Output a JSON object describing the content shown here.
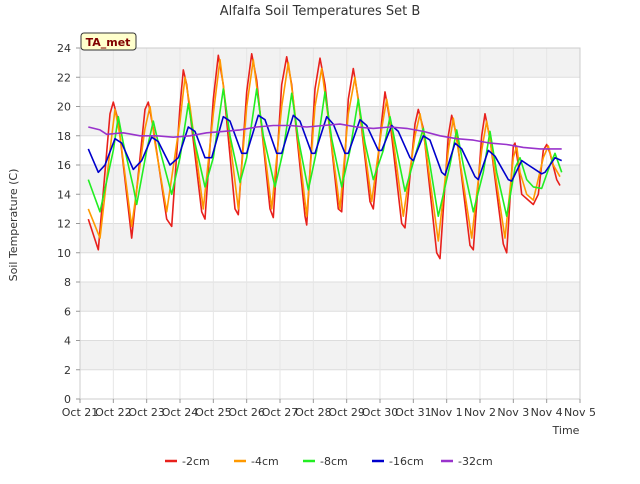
{
  "chart_data": {
    "type": "line",
    "title": "Alfalfa Soil Temperatures Set B",
    "xlabel": "Time",
    "ylabel": "Soil Temperature (C)",
    "badge": "TA_met",
    "xlim": [
      0,
      15
    ],
    "ylim": [
      0,
      24
    ],
    "ytick_step": 2,
    "xticks": [
      "Oct 21",
      "Oct 22",
      "Oct 23",
      "Oct 24",
      "Oct 25",
      "Oct 26",
      "Oct 27",
      "Oct 28",
      "Oct 29",
      "Oct 30",
      "Oct 31",
      "Nov 1",
      "Nov 2",
      "Nov 3",
      "Nov 4",
      "Nov 5"
    ],
    "grid": true,
    "legend_position": "bottom",
    "series": [
      {
        "name": "-2cm",
        "color": "#e8201c",
        "points": [
          [
            0.25,
            12.3
          ],
          [
            0.55,
            10.2
          ],
          [
            0.9,
            19.5
          ],
          [
            1.0,
            20.3
          ],
          [
            1.15,
            19.0
          ],
          [
            1.55,
            11.0
          ],
          [
            1.95,
            19.8
          ],
          [
            2.05,
            20.3
          ],
          [
            2.2,
            18.5
          ],
          [
            2.6,
            12.3
          ],
          [
            2.75,
            11.8
          ],
          [
            3.0,
            20.0
          ],
          [
            3.1,
            22.5
          ],
          [
            3.2,
            21.5
          ],
          [
            3.65,
            12.8
          ],
          [
            3.75,
            12.3
          ],
          [
            4.0,
            20.5
          ],
          [
            4.15,
            23.5
          ],
          [
            4.3,
            21.5
          ],
          [
            4.65,
            13.0
          ],
          [
            4.75,
            12.6
          ],
          [
            5.0,
            21.0
          ],
          [
            5.15,
            23.6
          ],
          [
            5.3,
            21.8
          ],
          [
            5.7,
            13.0
          ],
          [
            5.8,
            12.4
          ],
          [
            6.05,
            21.5
          ],
          [
            6.2,
            23.4
          ],
          [
            6.35,
            21.5
          ],
          [
            6.75,
            12.5
          ],
          [
            6.8,
            11.9
          ],
          [
            7.05,
            21.2
          ],
          [
            7.2,
            23.3
          ],
          [
            7.35,
            21.5
          ],
          [
            7.75,
            13.0
          ],
          [
            7.85,
            12.8
          ],
          [
            8.05,
            20.5
          ],
          [
            8.2,
            22.6
          ],
          [
            8.35,
            20.5
          ],
          [
            8.7,
            13.5
          ],
          [
            8.8,
            13.0
          ],
          [
            9.05,
            19.0
          ],
          [
            9.15,
            21.0
          ],
          [
            9.3,
            19.0
          ],
          [
            9.65,
            12.0
          ],
          [
            9.75,
            11.7
          ],
          [
            10.05,
            18.8
          ],
          [
            10.15,
            19.8
          ],
          [
            10.3,
            18.5
          ],
          [
            10.7,
            10.0
          ],
          [
            10.8,
            9.6
          ],
          [
            11.05,
            18.0
          ],
          [
            11.15,
            19.4
          ],
          [
            11.3,
            18.0
          ],
          [
            11.7,
            10.5
          ],
          [
            11.8,
            10.2
          ],
          [
            12.05,
            18.0
          ],
          [
            12.15,
            19.5
          ],
          [
            12.3,
            17.8
          ],
          [
            12.7,
            10.6
          ],
          [
            12.8,
            10.0
          ],
          [
            13.0,
            17.3
          ],
          [
            13.05,
            17.5
          ],
          [
            13.15,
            16.0
          ],
          [
            13.25,
            14.0
          ],
          [
            13.5,
            13.5
          ],
          [
            13.6,
            13.3
          ],
          [
            13.75,
            14.0
          ],
          [
            13.9,
            17.0
          ],
          [
            14.0,
            17.4
          ],
          [
            14.1,
            16.8
          ],
          [
            14.3,
            15.0
          ],
          [
            14.4,
            14.6
          ]
        ]
      },
      {
        "name": "-4cm",
        "color": "#ff9900",
        "points": [
          [
            0.25,
            13.0
          ],
          [
            0.6,
            11.0
          ],
          [
            0.9,
            17.0
          ],
          [
            1.05,
            19.8
          ],
          [
            1.2,
            18.0
          ],
          [
            1.55,
            11.8
          ],
          [
            1.95,
            18.5
          ],
          [
            2.1,
            20.0
          ],
          [
            2.25,
            17.5
          ],
          [
            2.6,
            12.8
          ],
          [
            3.0,
            19.0
          ],
          [
            3.15,
            22.0
          ],
          [
            3.3,
            20.0
          ],
          [
            3.7,
            13.0
          ],
          [
            4.0,
            19.5
          ],
          [
            4.2,
            23.2
          ],
          [
            4.35,
            20.5
          ],
          [
            4.75,
            13.0
          ],
          [
            5.0,
            20.0
          ],
          [
            5.2,
            23.2
          ],
          [
            5.35,
            20.5
          ],
          [
            5.75,
            13.0
          ],
          [
            6.05,
            20.0
          ],
          [
            6.25,
            23.0
          ],
          [
            6.4,
            20.5
          ],
          [
            6.8,
            12.5
          ],
          [
            7.05,
            20.0
          ],
          [
            7.25,
            22.6
          ],
          [
            7.4,
            20.0
          ],
          [
            7.8,
            13.0
          ],
          [
            8.05,
            19.5
          ],
          [
            8.25,
            22.0
          ],
          [
            8.4,
            19.5
          ],
          [
            8.75,
            13.5
          ],
          [
            9.05,
            18.5
          ],
          [
            9.2,
            20.5
          ],
          [
            9.35,
            18.5
          ],
          [
            9.7,
            12.5
          ],
          [
            10.05,
            18.0
          ],
          [
            10.2,
            19.5
          ],
          [
            10.35,
            17.5
          ],
          [
            10.75,
            10.8
          ],
          [
            11.05,
            17.0
          ],
          [
            11.2,
            19.2
          ],
          [
            11.35,
            17.0
          ],
          [
            11.75,
            11.0
          ],
          [
            12.05,
            17.0
          ],
          [
            12.2,
            19.0
          ],
          [
            12.35,
            17.0
          ],
          [
            12.75,
            11.0
          ],
          [
            13.0,
            16.5
          ],
          [
            13.1,
            17.3
          ],
          [
            13.2,
            15.5
          ],
          [
            13.4,
            14.0
          ],
          [
            13.6,
            13.6
          ],
          [
            13.9,
            16.5
          ],
          [
            14.05,
            17.3
          ],
          [
            14.2,
            16.0
          ],
          [
            14.4,
            15.2
          ]
        ]
      },
      {
        "name": "-8cm",
        "color": "#22ee22",
        "points": [
          [
            0.25,
            15.0
          ],
          [
            0.6,
            12.8
          ],
          [
            1.0,
            17.0
          ],
          [
            1.15,
            19.3
          ],
          [
            1.3,
            17.5
          ],
          [
            1.6,
            14.5
          ],
          [
            1.7,
            13.3
          ],
          [
            2.0,
            17.0
          ],
          [
            2.2,
            19.0
          ],
          [
            2.4,
            17.0
          ],
          [
            2.75,
            14.0
          ],
          [
            3.0,
            16.5
          ],
          [
            3.25,
            20.2
          ],
          [
            3.45,
            17.5
          ],
          [
            3.75,
            14.5
          ],
          [
            4.0,
            16.5
          ],
          [
            4.3,
            21.2
          ],
          [
            4.5,
            18.0
          ],
          [
            4.8,
            14.8
          ],
          [
            5.0,
            16.5
          ],
          [
            5.3,
            21.2
          ],
          [
            5.5,
            18.0
          ],
          [
            5.85,
            14.5
          ],
          [
            6.1,
            17.0
          ],
          [
            6.35,
            20.9
          ],
          [
            6.55,
            17.8
          ],
          [
            6.85,
            14.3
          ],
          [
            7.1,
            17.0
          ],
          [
            7.35,
            21.0
          ],
          [
            7.55,
            17.8
          ],
          [
            7.85,
            14.5
          ],
          [
            8.1,
            17.0
          ],
          [
            8.35,
            20.5
          ],
          [
            8.55,
            17.5
          ],
          [
            8.8,
            15.0
          ],
          [
            9.1,
            17.0
          ],
          [
            9.3,
            19.3
          ],
          [
            9.5,
            17.0
          ],
          [
            9.75,
            14.2
          ],
          [
            10.1,
            17.0
          ],
          [
            10.3,
            18.5
          ],
          [
            10.5,
            16.0
          ],
          [
            10.75,
            12.5
          ],
          [
            11.1,
            16.0
          ],
          [
            11.3,
            18.4
          ],
          [
            11.5,
            16.0
          ],
          [
            11.8,
            12.8
          ],
          [
            12.1,
            15.5
          ],
          [
            12.3,
            18.3
          ],
          [
            12.5,
            15.5
          ],
          [
            12.8,
            12.5
          ],
          [
            13.05,
            15.8
          ],
          [
            13.2,
            16.5
          ],
          [
            13.4,
            15.0
          ],
          [
            13.6,
            14.5
          ],
          [
            13.85,
            14.4
          ],
          [
            14.1,
            16.0
          ],
          [
            14.25,
            16.8
          ],
          [
            14.45,
            15.5
          ]
        ]
      },
      {
        "name": "-16cm",
        "color": "#0000cc",
        "points": [
          [
            0.25,
            17.1
          ],
          [
            0.55,
            15.5
          ],
          [
            0.75,
            16.0
          ],
          [
            1.05,
            17.8
          ],
          [
            1.25,
            17.5
          ],
          [
            1.6,
            15.7
          ],
          [
            1.85,
            16.3
          ],
          [
            2.15,
            17.9
          ],
          [
            2.35,
            17.6
          ],
          [
            2.7,
            16.0
          ],
          [
            2.95,
            16.5
          ],
          [
            3.25,
            18.6
          ],
          [
            3.45,
            18.3
          ],
          [
            3.75,
            16.5
          ],
          [
            3.95,
            16.5
          ],
          [
            4.3,
            19.3
          ],
          [
            4.5,
            19.0
          ],
          [
            4.85,
            16.8
          ],
          [
            5.0,
            16.8
          ],
          [
            5.35,
            19.4
          ],
          [
            5.55,
            19.1
          ],
          [
            5.9,
            16.8
          ],
          [
            6.05,
            16.8
          ],
          [
            6.4,
            19.4
          ],
          [
            6.6,
            19.0
          ],
          [
            6.95,
            16.8
          ],
          [
            7.05,
            16.8
          ],
          [
            7.4,
            19.3
          ],
          [
            7.6,
            18.8
          ],
          [
            7.95,
            16.8
          ],
          [
            8.05,
            16.8
          ],
          [
            8.4,
            19.1
          ],
          [
            8.6,
            18.7
          ],
          [
            8.95,
            17.0
          ],
          [
            9.05,
            17.0
          ],
          [
            9.35,
            18.7
          ],
          [
            9.55,
            18.3
          ],
          [
            9.9,
            16.5
          ],
          [
            10.0,
            16.3
          ],
          [
            10.3,
            18.0
          ],
          [
            10.5,
            17.7
          ],
          [
            10.85,
            15.5
          ],
          [
            10.95,
            15.3
          ],
          [
            11.25,
            17.5
          ],
          [
            11.45,
            17.1
          ],
          [
            11.85,
            15.2
          ],
          [
            11.95,
            15.0
          ],
          [
            12.25,
            17.0
          ],
          [
            12.45,
            16.6
          ],
          [
            12.85,
            15.0
          ],
          [
            12.95,
            14.9
          ],
          [
            13.25,
            16.3
          ],
          [
            13.45,
            16.0
          ],
          [
            13.85,
            15.4
          ],
          [
            13.95,
            15.5
          ],
          [
            14.25,
            16.5
          ],
          [
            14.45,
            16.3
          ]
        ]
      },
      {
        "name": "-32cm",
        "color": "#9933cc",
        "points": [
          [
            0.25,
            18.6
          ],
          [
            0.6,
            18.4
          ],
          [
            0.8,
            18.1
          ],
          [
            1.3,
            18.2
          ],
          [
            1.8,
            18.0
          ],
          [
            2.3,
            18.0
          ],
          [
            2.8,
            17.9
          ],
          [
            3.3,
            18.0
          ],
          [
            3.8,
            18.2
          ],
          [
            4.3,
            18.3
          ],
          [
            4.8,
            18.4
          ],
          [
            5.3,
            18.6
          ],
          [
            5.8,
            18.7
          ],
          [
            6.3,
            18.7
          ],
          [
            6.8,
            18.6
          ],
          [
            7.3,
            18.7
          ],
          [
            7.8,
            18.8
          ],
          [
            8.3,
            18.6
          ],
          [
            8.8,
            18.5
          ],
          [
            9.3,
            18.6
          ],
          [
            9.8,
            18.5
          ],
          [
            10.3,
            18.3
          ],
          [
            10.8,
            18.0
          ],
          [
            11.3,
            17.8
          ],
          [
            11.8,
            17.7
          ],
          [
            12.3,
            17.5
          ],
          [
            12.8,
            17.4
          ],
          [
            13.3,
            17.2
          ],
          [
            13.8,
            17.1
          ],
          [
            14.45,
            17.1
          ]
        ]
      }
    ]
  }
}
